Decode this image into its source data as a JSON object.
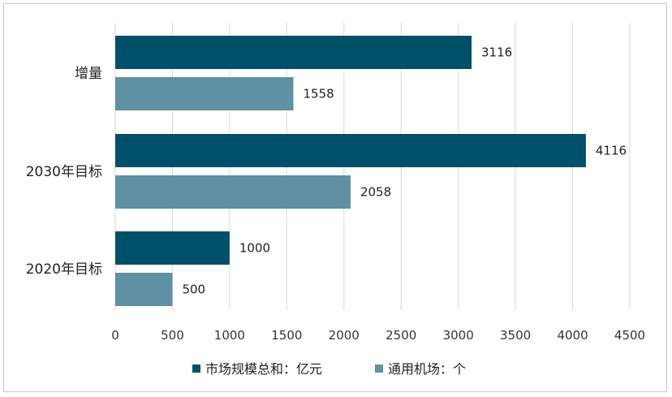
{
  "chart_data": {
    "type": "bar",
    "orientation": "horizontal",
    "categories": [
      "增量",
      "2030年目标",
      "2020年目标"
    ],
    "series": [
      {
        "name": "市场规模总和：亿元",
        "values": [
          3116,
          4116,
          1000
        ],
        "color": "#00506A"
      },
      {
        "name": "通用机场：个",
        "values": [
          1558,
          2058,
          500
        ],
        "color": "#5F90A3"
      }
    ],
    "xlim": [
      0,
      4500
    ],
    "xticks": [
      0,
      500,
      1000,
      1500,
      2000,
      2500,
      3000,
      3500,
      4000,
      4500
    ],
    "grid": true,
    "legend_position": "bottom"
  }
}
